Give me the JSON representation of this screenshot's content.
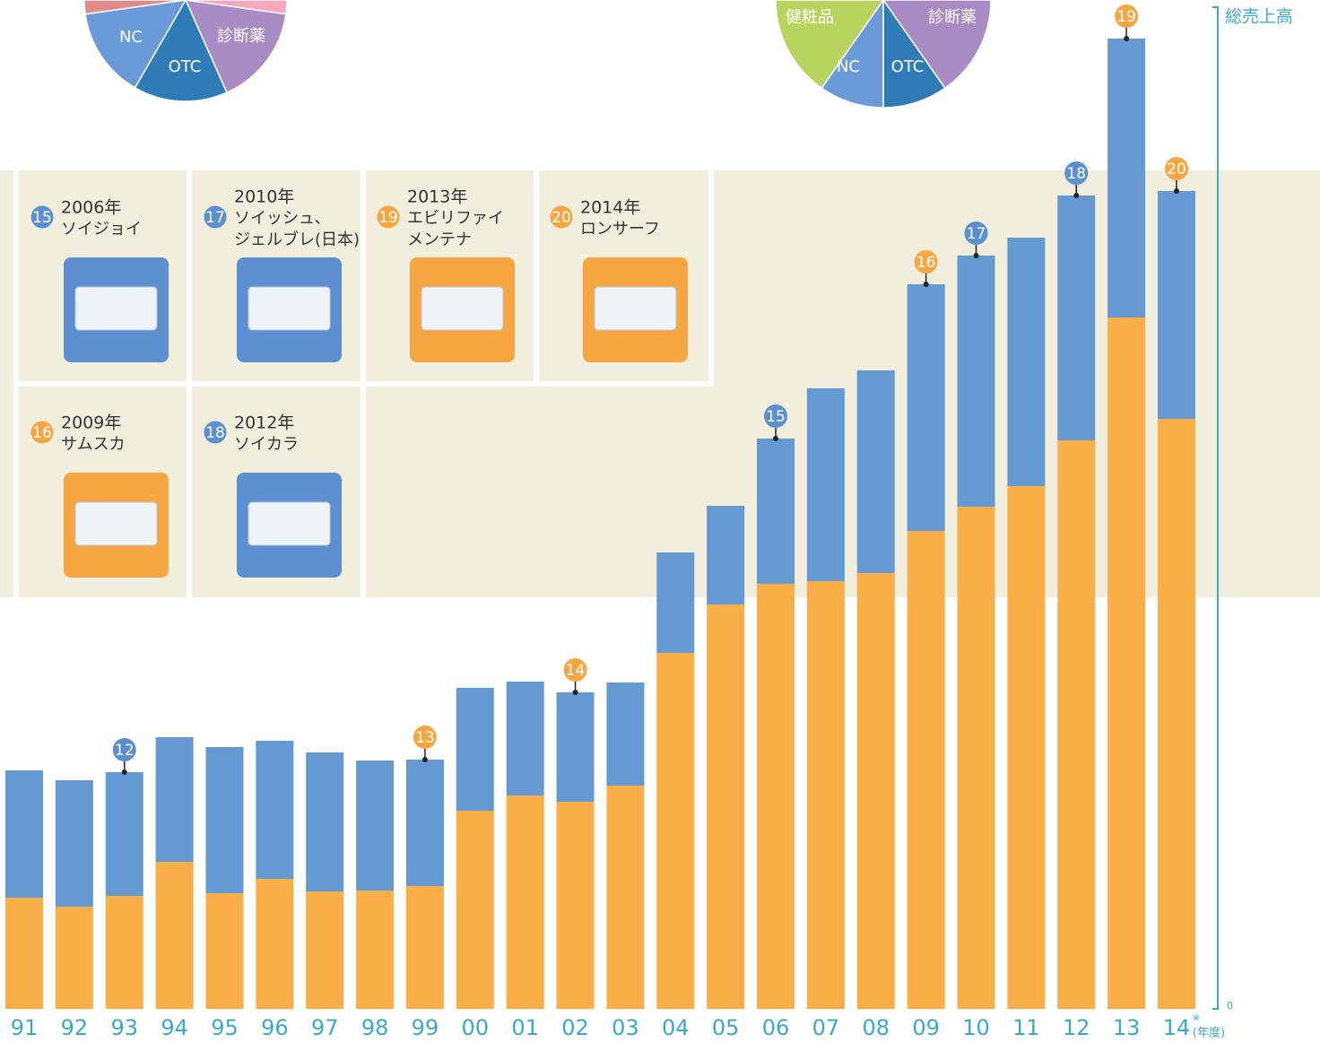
{
  "pies": [
    {
      "labels": [
        "NC",
        "OTC",
        "診断薬"
      ]
    },
    {
      "labels": [
        "健粧品",
        "診断薬",
        "NC",
        "OTC"
      ]
    }
  ],
  "products": [
    {
      "number": "15",
      "year": "2006年",
      "name": [
        "ソイジョイ"
      ],
      "color": "#5b8fd0"
    },
    {
      "number": "17",
      "year": "2010年",
      "name": [
        "ソイッシュ、",
        "ジェルブレ(日本)"
      ],
      "color": "#5b8fd0"
    },
    {
      "number": "19",
      "year": "2013年",
      "name": [
        "エビリファイ",
        "メンテナ"
      ],
      "color": "#f6a640"
    },
    {
      "number": "20",
      "year": "2014年",
      "name": [
        "ロンサーフ"
      ],
      "color": "#f6a640"
    },
    {
      "number": "16",
      "year": "2009年",
      "name": [
        "サムスカ"
      ],
      "color": "#f6a640"
    },
    {
      "number": "18",
      "year": "2012年",
      "name": [
        "ソイカラ"
      ],
      "color": "#5b8fd0"
    }
  ],
  "chart_data": {
    "type": "bar",
    "stacked": true,
    "axis_label": "総売上高",
    "x_note": "※",
    "x_unit": "(年度)",
    "categories": [
      "91",
      "92",
      "93",
      "94",
      "95",
      "96",
      "97",
      "98",
      "99",
      "00",
      "01",
      "02",
      "03",
      "04",
      "05",
      "06",
      "07",
      "08",
      "09",
      "10",
      "11",
      "12",
      "13",
      "14"
    ],
    "series": [
      {
        "color": "#f9ae47",
        "values": [
          124,
          114,
          126,
          164,
          129,
          145,
          131,
          132,
          137,
          221,
          238,
          231,
          249,
          397,
          451,
          474,
          477,
          486,
          533,
          560,
          583,
          634,
          771,
          658
        ]
      },
      {
        "color": "#6499d2",
        "values": [
          142,
          141,
          138,
          139,
          163,
          154,
          155,
          145,
          141,
          137,
          127,
          122,
          115,
          112,
          110,
          162,
          215,
          226,
          275,
          280,
          277,
          273,
          311,
          254
        ]
      }
    ],
    "ylim": [
      0,
      1125
    ],
    "yticks": [
      0
    ],
    "annotations": [
      {
        "label": "12",
        "category": "93",
        "color": "#5b8fd0"
      },
      {
        "label": "13",
        "category": "99",
        "color": "#f6a640"
      },
      {
        "label": "14",
        "category": "02",
        "color": "#f6a640"
      },
      {
        "label": "15",
        "category": "06",
        "color": "#5b8fd0"
      },
      {
        "label": "16",
        "category": "09",
        "color": "#f6a640"
      },
      {
        "label": "17",
        "category": "10",
        "color": "#5b8fd0"
      },
      {
        "label": "18",
        "category": "12",
        "color": "#5b8fd0"
      },
      {
        "label": "19",
        "category": "13",
        "color": "#f6a640"
      },
      {
        "label": "20",
        "category": "14",
        "color": "#f6a640"
      }
    ]
  }
}
